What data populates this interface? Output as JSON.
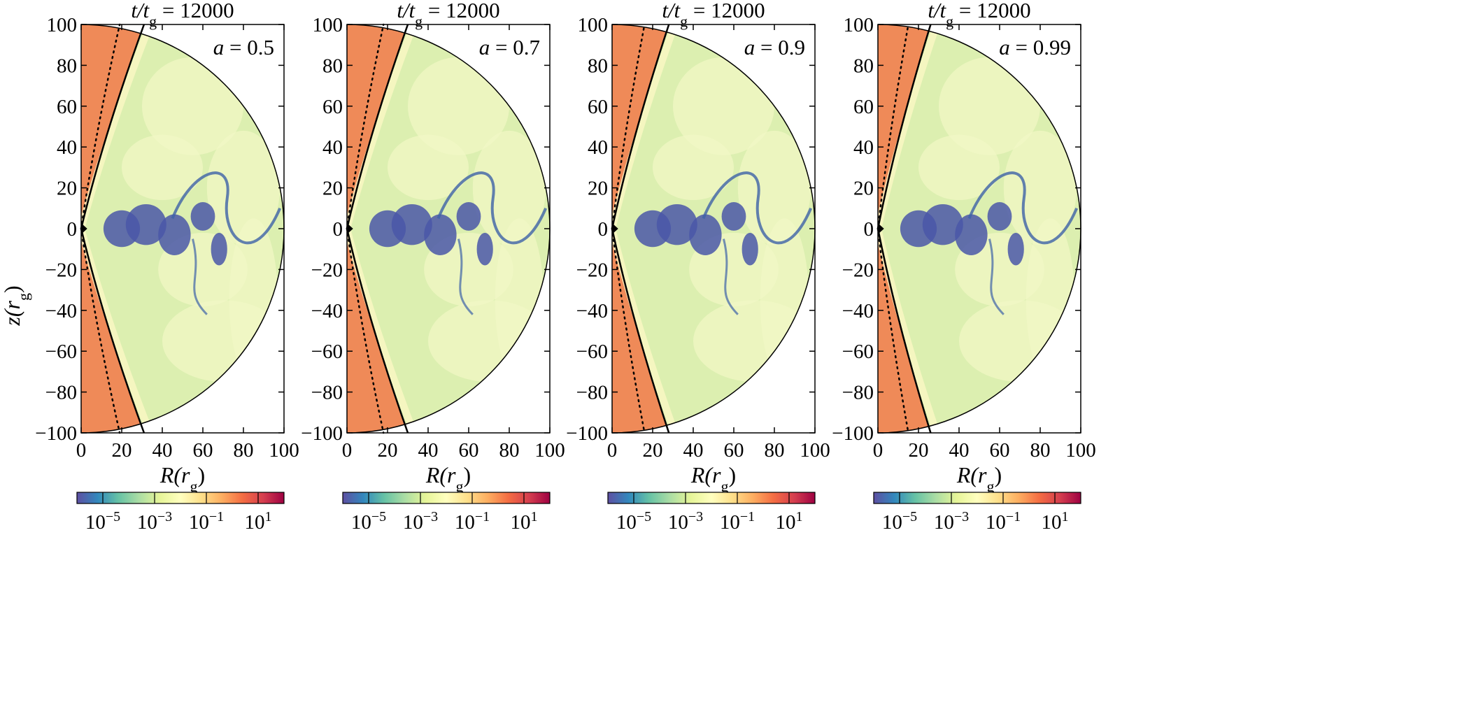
{
  "figure": {
    "y_axis_label": "z(r",
    "y_axis_label_sub": "g",
    "y_axis_label_close": ")"
  },
  "chart_data": [
    {
      "type": "heatmap",
      "title": "t/t_g = 12000",
      "title_main": "t/t",
      "title_sub": "g",
      "title_value": " = 12000",
      "annotation": "a = 0.5",
      "annotation_var": "a",
      "annotation_value": " = 0.5",
      "xlabel": "R(r_g)",
      "ylabel": "z(r_g)",
      "xlim": [
        0,
        100
      ],
      "ylim": [
        -100,
        100
      ],
      "x_ticks": [
        0,
        20,
        40,
        60,
        80,
        100
      ],
      "y_ticks": [
        100,
        80,
        60,
        40,
        20,
        0,
        -20,
        -40,
        -60,
        -80,
        -100
      ],
      "outer_radius": 100,
      "jet_boundary_solid": {
        "theta_top_deg": 17.5,
        "x_at_z_pm100": 31
      },
      "jet_boundary_dotted": {
        "x_at_z_pm100": 19
      },
      "colorbar_ticks": [
        "10^-5",
        "10^-3",
        "10^-1",
        "10^1"
      ],
      "colorbar_range_log10": [
        -6,
        2
      ]
    },
    {
      "type": "heatmap",
      "title": "t/t_g = 12000",
      "title_main": "t/t",
      "title_sub": "g",
      "title_value": " = 12000",
      "annotation": "a = 0.7",
      "annotation_var": "a",
      "annotation_value": " = 0.7",
      "xlabel": "R(r_g)",
      "ylabel": "z(r_g)",
      "xlim": [
        0,
        100
      ],
      "ylim": [
        -100,
        100
      ],
      "x_ticks": [
        0,
        20,
        40,
        60,
        80,
        100
      ],
      "y_ticks": [
        100,
        80,
        60,
        40,
        20,
        0,
        -20,
        -40,
        -60,
        -80,
        -100
      ],
      "outer_radius": 100,
      "jet_boundary_solid": {
        "x_at_z_pm100": 30
      },
      "jet_boundary_dotted": {
        "x_at_z_pm100": 18
      },
      "colorbar_ticks": [
        "10^-5",
        "10^-3",
        "10^-1",
        "10^1"
      ],
      "colorbar_range_log10": [
        -6,
        2
      ]
    },
    {
      "type": "heatmap",
      "title": "t/t_g = 12000",
      "title_main": "t/t",
      "title_sub": "g",
      "title_value": " = 12000",
      "annotation": "a = 0.9",
      "annotation_var": "a",
      "annotation_value": " = 0.9",
      "xlabel": "R(r_g)",
      "ylabel": "z(r_g)",
      "xlim": [
        0,
        100
      ],
      "ylim": [
        -100,
        100
      ],
      "x_ticks": [
        0,
        20,
        40,
        60,
        80,
        100
      ],
      "y_ticks": [
        100,
        80,
        60,
        40,
        20,
        0,
        -20,
        -40,
        -60,
        -80,
        -100
      ],
      "outer_radius": 100,
      "jet_boundary_solid": {
        "x_at_z_pm100": 28
      },
      "jet_boundary_dotted": {
        "x_at_z_pm100": 16
      },
      "colorbar_ticks": [
        "10^-5",
        "10^-3",
        "10^-1",
        "10^1"
      ],
      "colorbar_range_log10": [
        -6,
        2
      ]
    },
    {
      "type": "heatmap",
      "title": "t/t_g = 12000",
      "title_main": "t/t",
      "title_sub": "g",
      "title_value": " = 12000",
      "annotation": "a = 0.99",
      "annotation_var": "a",
      "annotation_value": " = 0.99",
      "xlabel": "R(r_g)",
      "ylabel": "z(r_g)",
      "xlim": [
        0,
        100
      ],
      "ylim": [
        -100,
        100
      ],
      "x_ticks": [
        0,
        20,
        40,
        60,
        80,
        100
      ],
      "y_ticks": [
        100,
        80,
        60,
        40,
        20,
        0,
        -20,
        -40,
        -60,
        -80,
        -100
      ],
      "outer_radius": 100,
      "jet_boundary_solid": {
        "x_at_z_pm100": 26
      },
      "jet_boundary_dotted": {
        "x_at_z_pm100": 15
      },
      "colorbar_ticks": [
        "10^-5",
        "10^-3",
        "10^-1",
        "10^1"
      ],
      "colorbar_range_log10": [
        -6,
        2
      ]
    }
  ],
  "colors": {
    "colormap": [
      "#5e4fa2",
      "#3288bd",
      "#66c2a5",
      "#abdda4",
      "#e6f598",
      "#ffffbf",
      "#fee08b",
      "#fdae61",
      "#f46d43",
      "#d53e4f",
      "#9e0142"
    ],
    "jet_fill": "#ef8a58",
    "disk_fill": "#dcefb0",
    "vortex_fill": "#4a57a8"
  }
}
